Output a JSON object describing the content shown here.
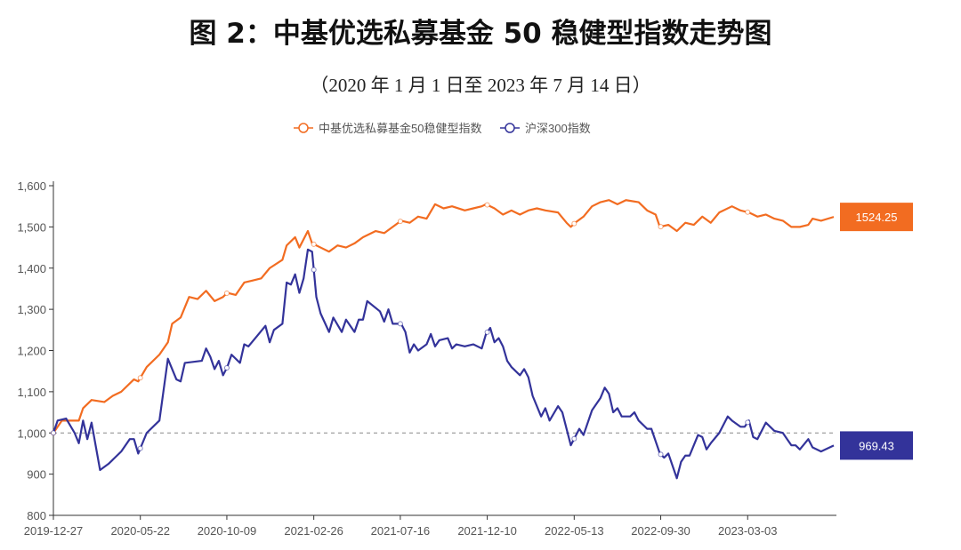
{
  "chart_data": {
    "type": "line",
    "title": "图 2：中基优选私募基金 50 稳健型指数走势图",
    "subtitle": "（2020 年 1 月 1 日至 2023 年 7 月 14 日）",
    "xlabel": "",
    "ylabel": "",
    "x_unit": "week index since 2019-12-27",
    "xlim": [
      0,
      184
    ],
    "ylim": [
      800,
      1600
    ],
    "yticks": [
      800,
      900,
      1000,
      1100,
      1200,
      1300,
      1400,
      1500,
      1600
    ],
    "ytick_labels": [
      "800",
      "900",
      "1,000",
      "1,100",
      "1,200",
      "1,300",
      "1,400",
      "1,500",
      "1,600"
    ],
    "xticks": [
      0,
      20.5,
      40.9,
      61.4,
      81.8,
      102.3,
      122.8,
      143.2,
      163.7
    ],
    "xtick_labels": [
      "2019-12-27",
      "2020-05-22",
      "2020-10-09",
      "2021-02-26",
      "2021-07-16",
      "2021-12-10",
      "2022-05-13",
      "2022-09-30",
      "2023-03-03"
    ],
    "reference_line": 1000,
    "legend_placement": "top-center",
    "series": [
      {
        "name": "中基优选私募基金50稳健型指数",
        "color": "#f26c21",
        "end_label": "1524.25",
        "points": [
          [
            0,
            1000
          ],
          [
            2,
            1030
          ],
          [
            4,
            1030
          ],
          [
            6,
            1030
          ],
          [
            7,
            1060
          ],
          [
            9,
            1080
          ],
          [
            12,
            1075
          ],
          [
            14,
            1090
          ],
          [
            16,
            1100
          ],
          [
            19,
            1130
          ],
          [
            20,
            1125
          ],
          [
            22,
            1160
          ],
          [
            25,
            1190
          ],
          [
            27,
            1220
          ],
          [
            28,
            1265
          ],
          [
            30,
            1280
          ],
          [
            32,
            1330
          ],
          [
            34,
            1325
          ],
          [
            36,
            1345
          ],
          [
            38,
            1320
          ],
          [
            40,
            1330
          ],
          [
            41,
            1340
          ],
          [
            43,
            1335
          ],
          [
            45,
            1365
          ],
          [
            47,
            1370
          ],
          [
            49,
            1375
          ],
          [
            51,
            1400
          ],
          [
            54,
            1420
          ],
          [
            55,
            1455
          ],
          [
            57,
            1475
          ],
          [
            58,
            1450
          ],
          [
            60,
            1490
          ],
          [
            61,
            1460
          ],
          [
            63,
            1450
          ],
          [
            65,
            1440
          ],
          [
            67,
            1455
          ],
          [
            69,
            1450
          ],
          [
            71,
            1460
          ],
          [
            73,
            1475
          ],
          [
            76,
            1490
          ],
          [
            78,
            1485
          ],
          [
            80,
            1500
          ],
          [
            82,
            1515
          ],
          [
            84,
            1510
          ],
          [
            86,
            1525
          ],
          [
            88,
            1520
          ],
          [
            90,
            1555
          ],
          [
            92,
            1545
          ],
          [
            94,
            1550
          ],
          [
            97,
            1540
          ],
          [
            99,
            1545
          ],
          [
            101,
            1550
          ],
          [
            102,
            1555
          ],
          [
            104,
            1545
          ],
          [
            106,
            1530
          ],
          [
            108,
            1540
          ],
          [
            110,
            1530
          ],
          [
            112,
            1540
          ],
          [
            114,
            1545
          ],
          [
            116,
            1540
          ],
          [
            119,
            1535
          ],
          [
            121,
            1510
          ],
          [
            122,
            1500
          ],
          [
            123,
            1510
          ],
          [
            125,
            1525
          ],
          [
            127,
            1550
          ],
          [
            129,
            1560
          ],
          [
            131,
            1565
          ],
          [
            133,
            1555
          ],
          [
            135,
            1565
          ],
          [
            138,
            1560
          ],
          [
            140,
            1540
          ],
          [
            142,
            1530
          ],
          [
            143,
            1500
          ],
          [
            145,
            1505
          ],
          [
            147,
            1490
          ],
          [
            149,
            1510
          ],
          [
            151,
            1505
          ],
          [
            153,
            1525
          ],
          [
            155,
            1510
          ],
          [
            157,
            1535
          ],
          [
            160,
            1550
          ],
          [
            162,
            1540
          ],
          [
            164,
            1535
          ],
          [
            166,
            1525
          ],
          [
            168,
            1530
          ],
          [
            170,
            1520
          ],
          [
            172,
            1515
          ],
          [
            174,
            1500
          ],
          [
            176,
            1500
          ],
          [
            178,
            1505
          ],
          [
            179,
            1520
          ],
          [
            181,
            1515
          ],
          [
            184,
            1524.25
          ]
        ]
      },
      {
        "name": "沪深300指数",
        "color": "#33339a",
        "end_label": "969.43",
        "points": [
          [
            0,
            1000
          ],
          [
            1,
            1030
          ],
          [
            3,
            1035
          ],
          [
            5,
            1000
          ],
          [
            6,
            975
          ],
          [
            7,
            1030
          ],
          [
            8,
            985
          ],
          [
            9,
            1025
          ],
          [
            11,
            910
          ],
          [
            13,
            925
          ],
          [
            15,
            945
          ],
          [
            16,
            955
          ],
          [
            18,
            985
          ],
          [
            19,
            985
          ],
          [
            20,
            950
          ],
          [
            22,
            1000
          ],
          [
            24,
            1020
          ],
          [
            25,
            1030
          ],
          [
            27,
            1180
          ],
          [
            29,
            1130
          ],
          [
            30,
            1125
          ],
          [
            31,
            1170
          ],
          [
            35,
            1175
          ],
          [
            36,
            1205
          ],
          [
            37,
            1185
          ],
          [
            38,
            1155
          ],
          [
            39,
            1175
          ],
          [
            40,
            1140
          ],
          [
            41,
            1160
          ],
          [
            42,
            1190
          ],
          [
            44,
            1170
          ],
          [
            45,
            1215
          ],
          [
            46,
            1210
          ],
          [
            48,
            1235
          ],
          [
            50,
            1260
          ],
          [
            51,
            1220
          ],
          [
            52,
            1250
          ],
          [
            54,
            1265
          ],
          [
            55,
            1365
          ],
          [
            56,
            1360
          ],
          [
            57,
            1385
          ],
          [
            58,
            1340
          ],
          [
            59,
            1375
          ],
          [
            60,
            1445
          ],
          [
            61,
            1440
          ],
          [
            62,
            1330
          ],
          [
            63,
            1290
          ],
          [
            65,
            1245
          ],
          [
            66,
            1280
          ],
          [
            68,
            1245
          ],
          [
            69,
            1275
          ],
          [
            71,
            1245
          ],
          [
            72,
            1275
          ],
          [
            73,
            1275
          ],
          [
            74,
            1320
          ],
          [
            77,
            1295
          ],
          [
            78,
            1270
          ],
          [
            79,
            1300
          ],
          [
            80,
            1265
          ],
          [
            82,
            1265
          ],
          [
            83,
            1245
          ],
          [
            84,
            1195
          ],
          [
            85,
            1215
          ],
          [
            86,
            1200
          ],
          [
            88,
            1215
          ],
          [
            89,
            1240
          ],
          [
            90,
            1210
          ],
          [
            91,
            1225
          ],
          [
            93,
            1230
          ],
          [
            94,
            1205
          ],
          [
            95,
            1215
          ],
          [
            97,
            1210
          ],
          [
            99,
            1215
          ],
          [
            101,
            1205
          ],
          [
            102,
            1240
          ],
          [
            103,
            1255
          ],
          [
            104,
            1220
          ],
          [
            105,
            1230
          ],
          [
            106,
            1210
          ],
          [
            107,
            1175
          ],
          [
            108,
            1160
          ],
          [
            110,
            1140
          ],
          [
            111,
            1155
          ],
          [
            112,
            1135
          ],
          [
            113,
            1090
          ],
          [
            115,
            1040
          ],
          [
            116,
            1060
          ],
          [
            117,
            1030
          ],
          [
            119,
            1065
          ],
          [
            120,
            1050
          ],
          [
            122,
            970
          ],
          [
            123,
            990
          ],
          [
            124,
            1010
          ],
          [
            125,
            995
          ],
          [
            127,
            1055
          ],
          [
            129,
            1085
          ],
          [
            130,
            1110
          ],
          [
            131,
            1095
          ],
          [
            132,
            1050
          ],
          [
            133,
            1060
          ],
          [
            134,
            1040
          ],
          [
            136,
            1040
          ],
          [
            137,
            1050
          ],
          [
            138,
            1030
          ],
          [
            140,
            1010
          ],
          [
            141,
            1010
          ],
          [
            143,
            950
          ],
          [
            144,
            940
          ],
          [
            145,
            950
          ],
          [
            146,
            920
          ],
          [
            147,
            890
          ],
          [
            148,
            930
          ],
          [
            149,
            945
          ],
          [
            150,
            945
          ],
          [
            152,
            995
          ],
          [
            153,
            990
          ],
          [
            154,
            960
          ],
          [
            155,
            975
          ],
          [
            157,
            1000
          ],
          [
            159,
            1040
          ],
          [
            160,
            1030
          ],
          [
            162,
            1015
          ],
          [
            163,
            1015
          ],
          [
            164,
            1030
          ],
          [
            165,
            990
          ],
          [
            166,
            985
          ],
          [
            168,
            1025
          ],
          [
            169,
            1015
          ],
          [
            170,
            1005
          ],
          [
            172,
            1000
          ],
          [
            173,
            985
          ],
          [
            174,
            970
          ],
          [
            175,
            970
          ],
          [
            176,
            960
          ],
          [
            178,
            985
          ],
          [
            179,
            965
          ],
          [
            181,
            955
          ],
          [
            184,
            969.43
          ]
        ]
      }
    ]
  }
}
